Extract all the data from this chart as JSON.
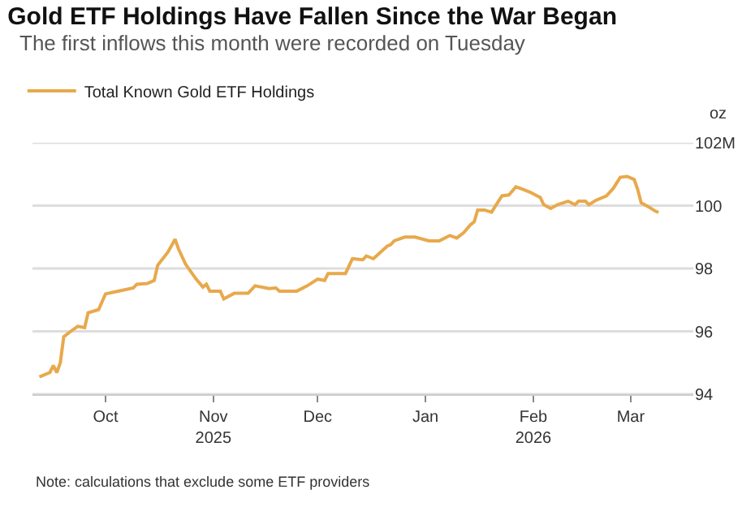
{
  "chart_data": {
    "type": "line",
    "title": "Gold ETF Holdings Have Fallen Since the War Began",
    "subtitle": "The first inflows this month were recorded on Tuesday",
    "ylabel": "oz",
    "x": [
      "2025-09-12",
      "2025-09-15",
      "2025-09-16",
      "2025-09-17",
      "2025-09-18",
      "2025-09-19",
      "2025-09-21",
      "2025-09-23",
      "2025-09-25",
      "2025-09-26",
      "2025-09-29",
      "2025-10-01",
      "2025-10-03",
      "2025-10-06",
      "2025-10-09",
      "2025-10-10",
      "2025-10-13",
      "2025-10-15",
      "2025-10-16",
      "2025-10-19",
      "2025-10-21",
      "2025-10-22",
      "2025-10-24",
      "2025-10-27",
      "2025-10-29",
      "2025-10-30",
      "2025-10-31",
      "2025-11-03",
      "2025-11-04",
      "2025-11-07",
      "2025-11-11",
      "2025-11-13",
      "2025-11-17",
      "2025-11-19",
      "2025-11-20",
      "2025-11-25",
      "2025-11-28",
      "2025-12-01",
      "2025-12-03",
      "2025-12-04",
      "2025-12-09",
      "2025-12-11",
      "2025-12-14",
      "2025-12-15",
      "2025-12-17",
      "2025-12-21",
      "2025-12-22",
      "2025-12-23",
      "2025-12-26",
      "2025-12-29",
      "2026-01-02",
      "2026-01-05",
      "2026-01-08",
      "2026-01-10",
      "2026-01-12",
      "2026-01-14",
      "2026-01-15",
      "2026-01-16",
      "2026-01-18",
      "2026-01-20",
      "2026-01-21",
      "2026-01-23",
      "2026-01-25",
      "2026-01-27",
      "2026-01-29",
      "2026-01-31",
      "2026-02-03",
      "2026-02-04",
      "2026-02-06",
      "2026-02-08",
      "2026-02-11",
      "2026-02-13",
      "2026-02-14",
      "2026-02-16",
      "2026-02-17",
      "2026-02-19",
      "2026-02-22",
      "2026-02-24",
      "2026-02-26",
      "2026-02-28",
      "2026-03-02",
      "2026-03-03",
      "2026-03-04",
      "2026-03-06",
      "2026-03-08",
      "2026-03-09"
    ],
    "series": [
      {
        "name": "Total Known Gold ETF Holdings",
        "color": "#e8a94c",
        "values": [
          94.55,
          94.69,
          94.91,
          94.69,
          95.0,
          95.83,
          96.0,
          96.16,
          96.12,
          96.59,
          96.69,
          97.19,
          97.24,
          97.31,
          97.38,
          97.5,
          97.52,
          97.62,
          98.1,
          98.53,
          98.93,
          98.62,
          98.14,
          97.67,
          97.41,
          97.5,
          97.28,
          97.28,
          97.03,
          97.21,
          97.21,
          97.45,
          97.36,
          97.38,
          97.28,
          97.28,
          97.45,
          97.66,
          97.62,
          97.84,
          97.84,
          98.31,
          98.28,
          98.4,
          98.31,
          98.71,
          98.76,
          98.88,
          99.0,
          99.0,
          98.88,
          98.88,
          99.05,
          98.97,
          99.14,
          99.4,
          99.48,
          99.86,
          99.86,
          99.79,
          99.97,
          100.31,
          100.34,
          100.6,
          100.52,
          100.43,
          100.26,
          100.03,
          99.91,
          100.03,
          100.14,
          100.03,
          100.14,
          100.14,
          100.03,
          100.17,
          100.31,
          100.55,
          100.9,
          100.93,
          100.83,
          100.52,
          100.09,
          99.97,
          99.83,
          99.78
        ]
      }
    ],
    "xlim": [
      "2025-09-10",
      "2026-03-19"
    ],
    "xticks": [
      {
        "value": "2025-10-01",
        "label": "Oct"
      },
      {
        "value": "2025-11-01",
        "label": "Nov\n2025"
      },
      {
        "value": "2025-12-01",
        "label": "Dec"
      },
      {
        "value": "2026-01-01",
        "label": "Jan"
      },
      {
        "value": "2026-02-01",
        "label": "Feb\n2026"
      },
      {
        "value": "2026-03-01",
        "label": "Mar"
      }
    ],
    "ylim": [
      94,
      102
    ],
    "yticks": [
      94,
      96,
      98,
      100,
      {
        "value": 102,
        "label": "102M"
      }
    ],
    "grid": "y",
    "legend": "top left",
    "marker": "none",
    "line_style": "solid",
    "annotations": [
      "Note: calculations that exclude some ETF providers"
    ]
  }
}
